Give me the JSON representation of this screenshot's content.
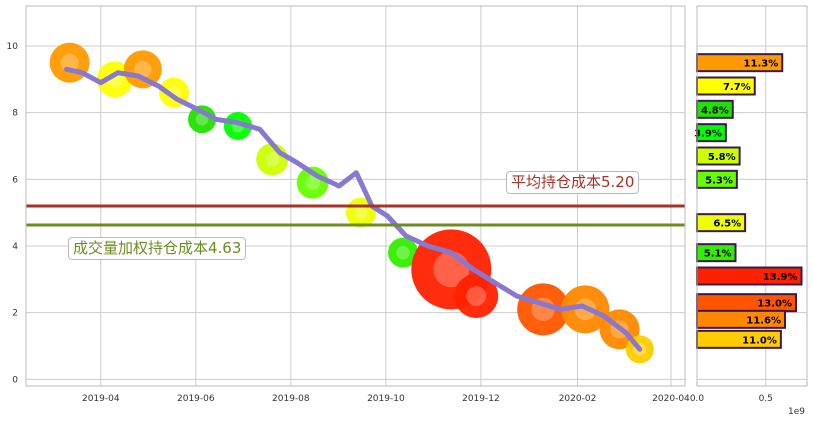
{
  "chart_data": [
    {
      "type": "line",
      "x_ticks": [
        "2019-04",
        "2019-06",
        "2019-08",
        "2019-10",
        "2019-12",
        "2020-02",
        "2020-04"
      ],
      "y_ticks": [
        "0",
        "2",
        "4",
        "6",
        "8",
        "10"
      ],
      "ylim": [
        -0.2,
        11.2
      ],
      "xlim": [
        "2019-02-12",
        "2020-04-10"
      ],
      "grid": true,
      "series": [
        {
          "x": [
            "2019-03-10",
            "2019-03-20",
            "2019-04-01",
            "2019-04-12",
            "2019-04-25",
            "2019-05-08",
            "2019-05-20",
            "2019-06-02",
            "2019-06-14",
            "2019-06-28",
            "2019-07-12",
            "2019-07-25",
            "2019-08-05",
            "2019-08-18",
            "2019-09-01",
            "2019-09-12",
            "2019-09-22",
            "2019-10-02",
            "2019-10-14",
            "2019-10-28",
            "2019-11-12",
            "2019-11-26",
            "2019-12-10",
            "2019-12-24",
            "2020-01-07",
            "2020-01-21",
            "2020-02-04",
            "2020-02-18",
            "2020-03-03",
            "2020-03-12"
          ],
          "values": [
            9.3,
            9.2,
            8.9,
            9.2,
            9.1,
            8.8,
            8.4,
            8.1,
            7.8,
            7.7,
            7.5,
            6.8,
            6.5,
            6.1,
            5.8,
            6.2,
            5.2,
            4.9,
            4.3,
            4.0,
            3.8,
            3.3,
            2.9,
            2.5,
            2.3,
            2.1,
            2.2,
            1.9,
            1.4,
            0.9
          ],
          "color": "#8878d0"
        }
      ],
      "hlines": [
        {
          "value": 5.2,
          "label": "平均持仓成本5.20",
          "color": "#a83226"
        },
        {
          "value": 4.63,
          "label": "成交量加权持仓成本4.63",
          "color": "#6b8e23"
        }
      ]
    },
    {
      "type": "bar",
      "orientation": "horizontal",
      "x_ticks": [
        "0.0",
        "0.5"
      ],
      "x_multiplier": "1e9",
      "xlim": [
        0,
        0.8
      ],
      "ylim": [
        -0.2,
        11.2
      ],
      "bars": [
        {
          "y": 9.5,
          "value": 0.62,
          "label": "11.3%",
          "color": "#ff9a00"
        },
        {
          "y": 8.8,
          "value": 0.42,
          "label": "7.7%",
          "color": "#ffff00"
        },
        {
          "y": 8.1,
          "value": 0.26,
          "label": "4.8%",
          "color": "#22e000"
        },
        {
          "y": 7.4,
          "value": 0.21,
          "label": "3.9%",
          "color": "#00ff00"
        },
        {
          "y": 6.7,
          "value": 0.31,
          "label": "5.8%",
          "color": "#ccff00"
        },
        {
          "y": 6.0,
          "value": 0.29,
          "label": "5.3%",
          "color": "#66ff00"
        },
        {
          "y": 4.7,
          "value": 0.35,
          "label": "6.5%",
          "color": "#eeff00"
        },
        {
          "y": 3.8,
          "value": 0.28,
          "label": "5.1%",
          "color": "#33ee00"
        },
        {
          "y": 3.1,
          "value": 0.76,
          "label": "13.9%",
          "color": "#ff2200"
        },
        {
          "y": 2.3,
          "value": 0.72,
          "label": "13.0%",
          "color": "#ff5500"
        },
        {
          "y": 1.8,
          "value": 0.64,
          "label": "11.6%",
          "color": "#ff8800"
        },
        {
          "y": 1.2,
          "value": 0.61,
          "label": "11.0%",
          "color": "#ffcc00"
        }
      ]
    }
  ],
  "annotations": {
    "avg_cost": "平均持仓成本5.20",
    "vwap_cost": "成交量加权持仓成本4.63"
  },
  "colors": {
    "grid": "#cccccc",
    "axis": "#bbbbbb",
    "bar_border": "#3a1a4a"
  },
  "decorations": [
    {
      "x": "2019-03-12",
      "y": 9.5,
      "size": 20,
      "color": "#ff9a00",
      "fruit": "radish-icon"
    },
    {
      "x": "2019-04-10",
      "y": 9.0,
      "size": 18,
      "color": "#ffff00",
      "fruit": "banana-icon"
    },
    {
      "x": "2019-04-28",
      "y": 9.3,
      "size": 19,
      "color": "#ff9a00",
      "fruit": "radish-icon"
    },
    {
      "x": "2019-05-18",
      "y": 8.6,
      "size": 15,
      "color": "#ffff00",
      "fruit": "peapod-icon"
    },
    {
      "x": "2019-06-05",
      "y": 7.8,
      "size": 14,
      "color": "#22e000",
      "fruit": "peapod-icon"
    },
    {
      "x": "2019-06-28",
      "y": 7.6,
      "size": 14,
      "color": "#00ff00",
      "fruit": "kiwi-icon"
    },
    {
      "x": "2019-07-20",
      "y": 6.6,
      "size": 16,
      "color": "#ccff00",
      "fruit": "corn-icon"
    },
    {
      "x": "2019-08-15",
      "y": 5.9,
      "size": 16,
      "color": "#66ff00",
      "fruit": "pear-icon"
    },
    {
      "x": "2019-09-15",
      "y": 5.0,
      "size": 15,
      "color": "#eeff00",
      "fruit": "pineapple-icon"
    },
    {
      "x": "2019-10-12",
      "y": 3.8,
      "size": 15,
      "color": "#33ee00",
      "fruit": "watermelon-icon"
    },
    {
      "x": "2019-11-12",
      "y": 3.3,
      "size": 40,
      "color": "#ff2200",
      "fruit": "apple-icon"
    },
    {
      "x": "2019-11-28",
      "y": 2.5,
      "size": 22,
      "color": "#ff2200",
      "fruit": "apple-icon"
    },
    {
      "x": "2020-01-10",
      "y": 2.1,
      "size": 26,
      "color": "#ff5500",
      "fruit": "strawberry-icon"
    },
    {
      "x": "2020-02-06",
      "y": 2.1,
      "size": 24,
      "color": "#ff8800",
      "fruit": "strawberry-icon"
    },
    {
      "x": "2020-02-28",
      "y": 1.5,
      "size": 20,
      "color": "#ff8800",
      "fruit": "carrot-icon"
    },
    {
      "x": "2020-03-12",
      "y": 0.9,
      "size": 14,
      "color": "#ffcc00",
      "fruit": "carrot-icon"
    }
  ]
}
